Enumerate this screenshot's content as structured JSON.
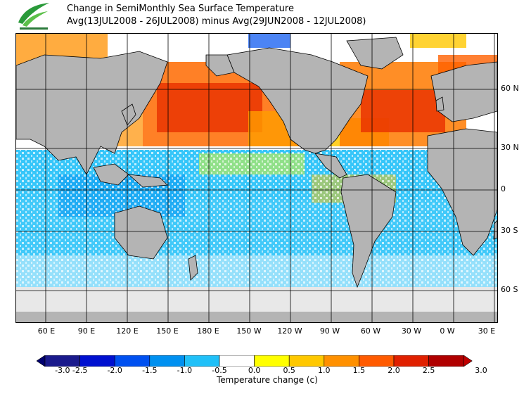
{
  "header": {
    "title_line1": "Change in SemiMonthly Sea Surface Temperature",
    "title_line2": "Avg(13JUL2008 - 26JUL2008) minus Avg(29JUN2008 - 12JUL2008)"
  },
  "map": {
    "lat_labels": [
      "60 N",
      "30 N",
      "0",
      "30 S",
      "60 S"
    ],
    "lon_labels": [
      "60 E",
      "90 E",
      "120 E",
      "150 E",
      "180 E",
      "150 W",
      "120 W",
      "90 W",
      "60 W",
      "30 W",
      "0 W",
      "30 E"
    ]
  },
  "legend": {
    "unit": "Temperature change  (c)",
    "tick_labels": [
      "-3.0",
      "-2.5",
      "-2.0",
      "-1.5",
      "-1.0",
      "-0.5",
      "0.0",
      "0.5",
      "1.0",
      "1.5",
      "2.0",
      "2.5",
      "3.0"
    ],
    "colors": [
      "#1a1a8c",
      "#0010d0",
      "#0050f0",
      "#0090f0",
      "#20c0f8",
      "#ffffff",
      "#ffff00",
      "#ffc800",
      "#ff9000",
      "#ff5a00",
      "#e02000",
      "#b00000"
    ],
    "low_arrow_color": "#000070",
    "high_arrow_color": "#c00000"
  },
  "colors": {
    "land": "#b4b4b4",
    "ice": "#e8e8e8",
    "grid": "#000000"
  }
}
